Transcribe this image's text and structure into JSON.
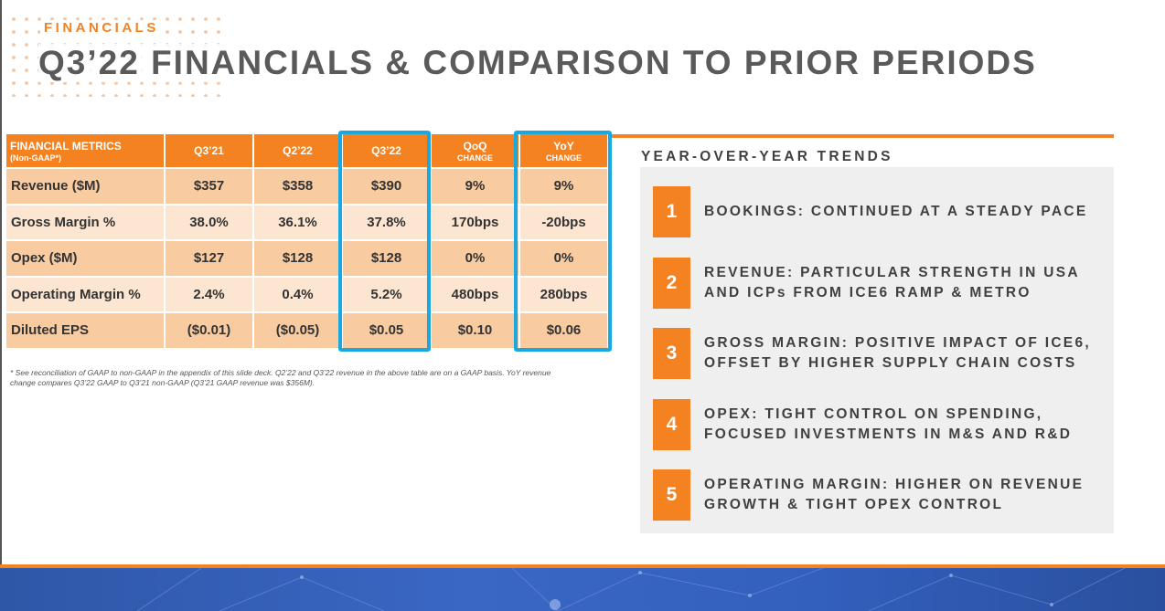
{
  "header": {
    "section": "FINANCIALS",
    "title": "Q3’22 FINANCIALS & COMPARISON TO PRIOR PERIODS"
  },
  "table": {
    "header": {
      "metric_line1": "FINANCIAL METRICS",
      "metric_line2": "(Non-GAAP*)",
      "q321": "Q3’21",
      "q222": "Q2’22",
      "q322": "Q3’22",
      "qoq": "QoQ",
      "qoq_sub": "CHANGE",
      "yoy": "YoY",
      "yoy_sub": "CHANGE"
    },
    "rows": [
      {
        "label": "Revenue ($M)",
        "q321": "$357",
        "q222": "$358",
        "q322": "$390",
        "qoq": "9%",
        "yoy": "9%"
      },
      {
        "label": "Gross Margin %",
        "q321": "38.0%",
        "q222": "36.1%",
        "q322": "37.8%",
        "qoq": "170bps",
        "yoy": "-20bps"
      },
      {
        "label": "Opex ($M)",
        "q321": "$127",
        "q222": "$128",
        "q322": "$128",
        "qoq": "0%",
        "yoy": "0%"
      },
      {
        "label": "Operating Margin %",
        "q321": "2.4%",
        "q222": "0.4%",
        "q322": "5.2%",
        "qoq": "480bps",
        "yoy": "280bps"
      },
      {
        "label": "Diluted EPS",
        "q321": "($0.01)",
        "q222": "($0.05)",
        "q322": "$0.05",
        "qoq": "$0.10",
        "yoy": "$0.06"
      }
    ]
  },
  "footnote": "* See reconciliation of GAAP to non-GAAP in the appendix of this slide deck. Q2’22 and Q3’22 revenue in the above table are on a GAAP basis. YoY revenue change compares Q3’22 GAAP to Q3’21 non-GAAP (Q3’21 GAAP revenue was $356M).",
  "trends": {
    "title": "YEAR-OVER-YEAR TRENDS",
    "items": [
      {
        "num": "1",
        "line1": "BOOKINGS: CONTINUED AT A STEADY PACE",
        "line2": ""
      },
      {
        "num": "2",
        "line1": "REVENUE: PARTICULAR STRENGTH IN USA",
        "line2": "AND ICPs FROM ICE6 RAMP & METRO"
      },
      {
        "num": "3",
        "line1": "GROSS MARGIN: POSITIVE IMPACT OF ICE6,",
        "line2": "OFFSET BY HIGHER SUPPLY CHAIN COSTS"
      },
      {
        "num": "4",
        "line1": "OPEX: TIGHT CONTROL ON SPENDING,",
        "line2": "FOCUSED INVESTMENTS IN M&S AND R&D"
      },
      {
        "num": "5",
        "line1": "OPERATING MARGIN: HIGHER ON REVENUE",
        "line2": "GROWTH & TIGHT OPEX CONTROL"
      }
    ]
  },
  "colors": {
    "accent": "#f58220",
    "highlight": "#1ba8e0",
    "row_dark": "#f9cba0",
    "row_light": "#fde6d1",
    "footer": "#3a67c4"
  }
}
